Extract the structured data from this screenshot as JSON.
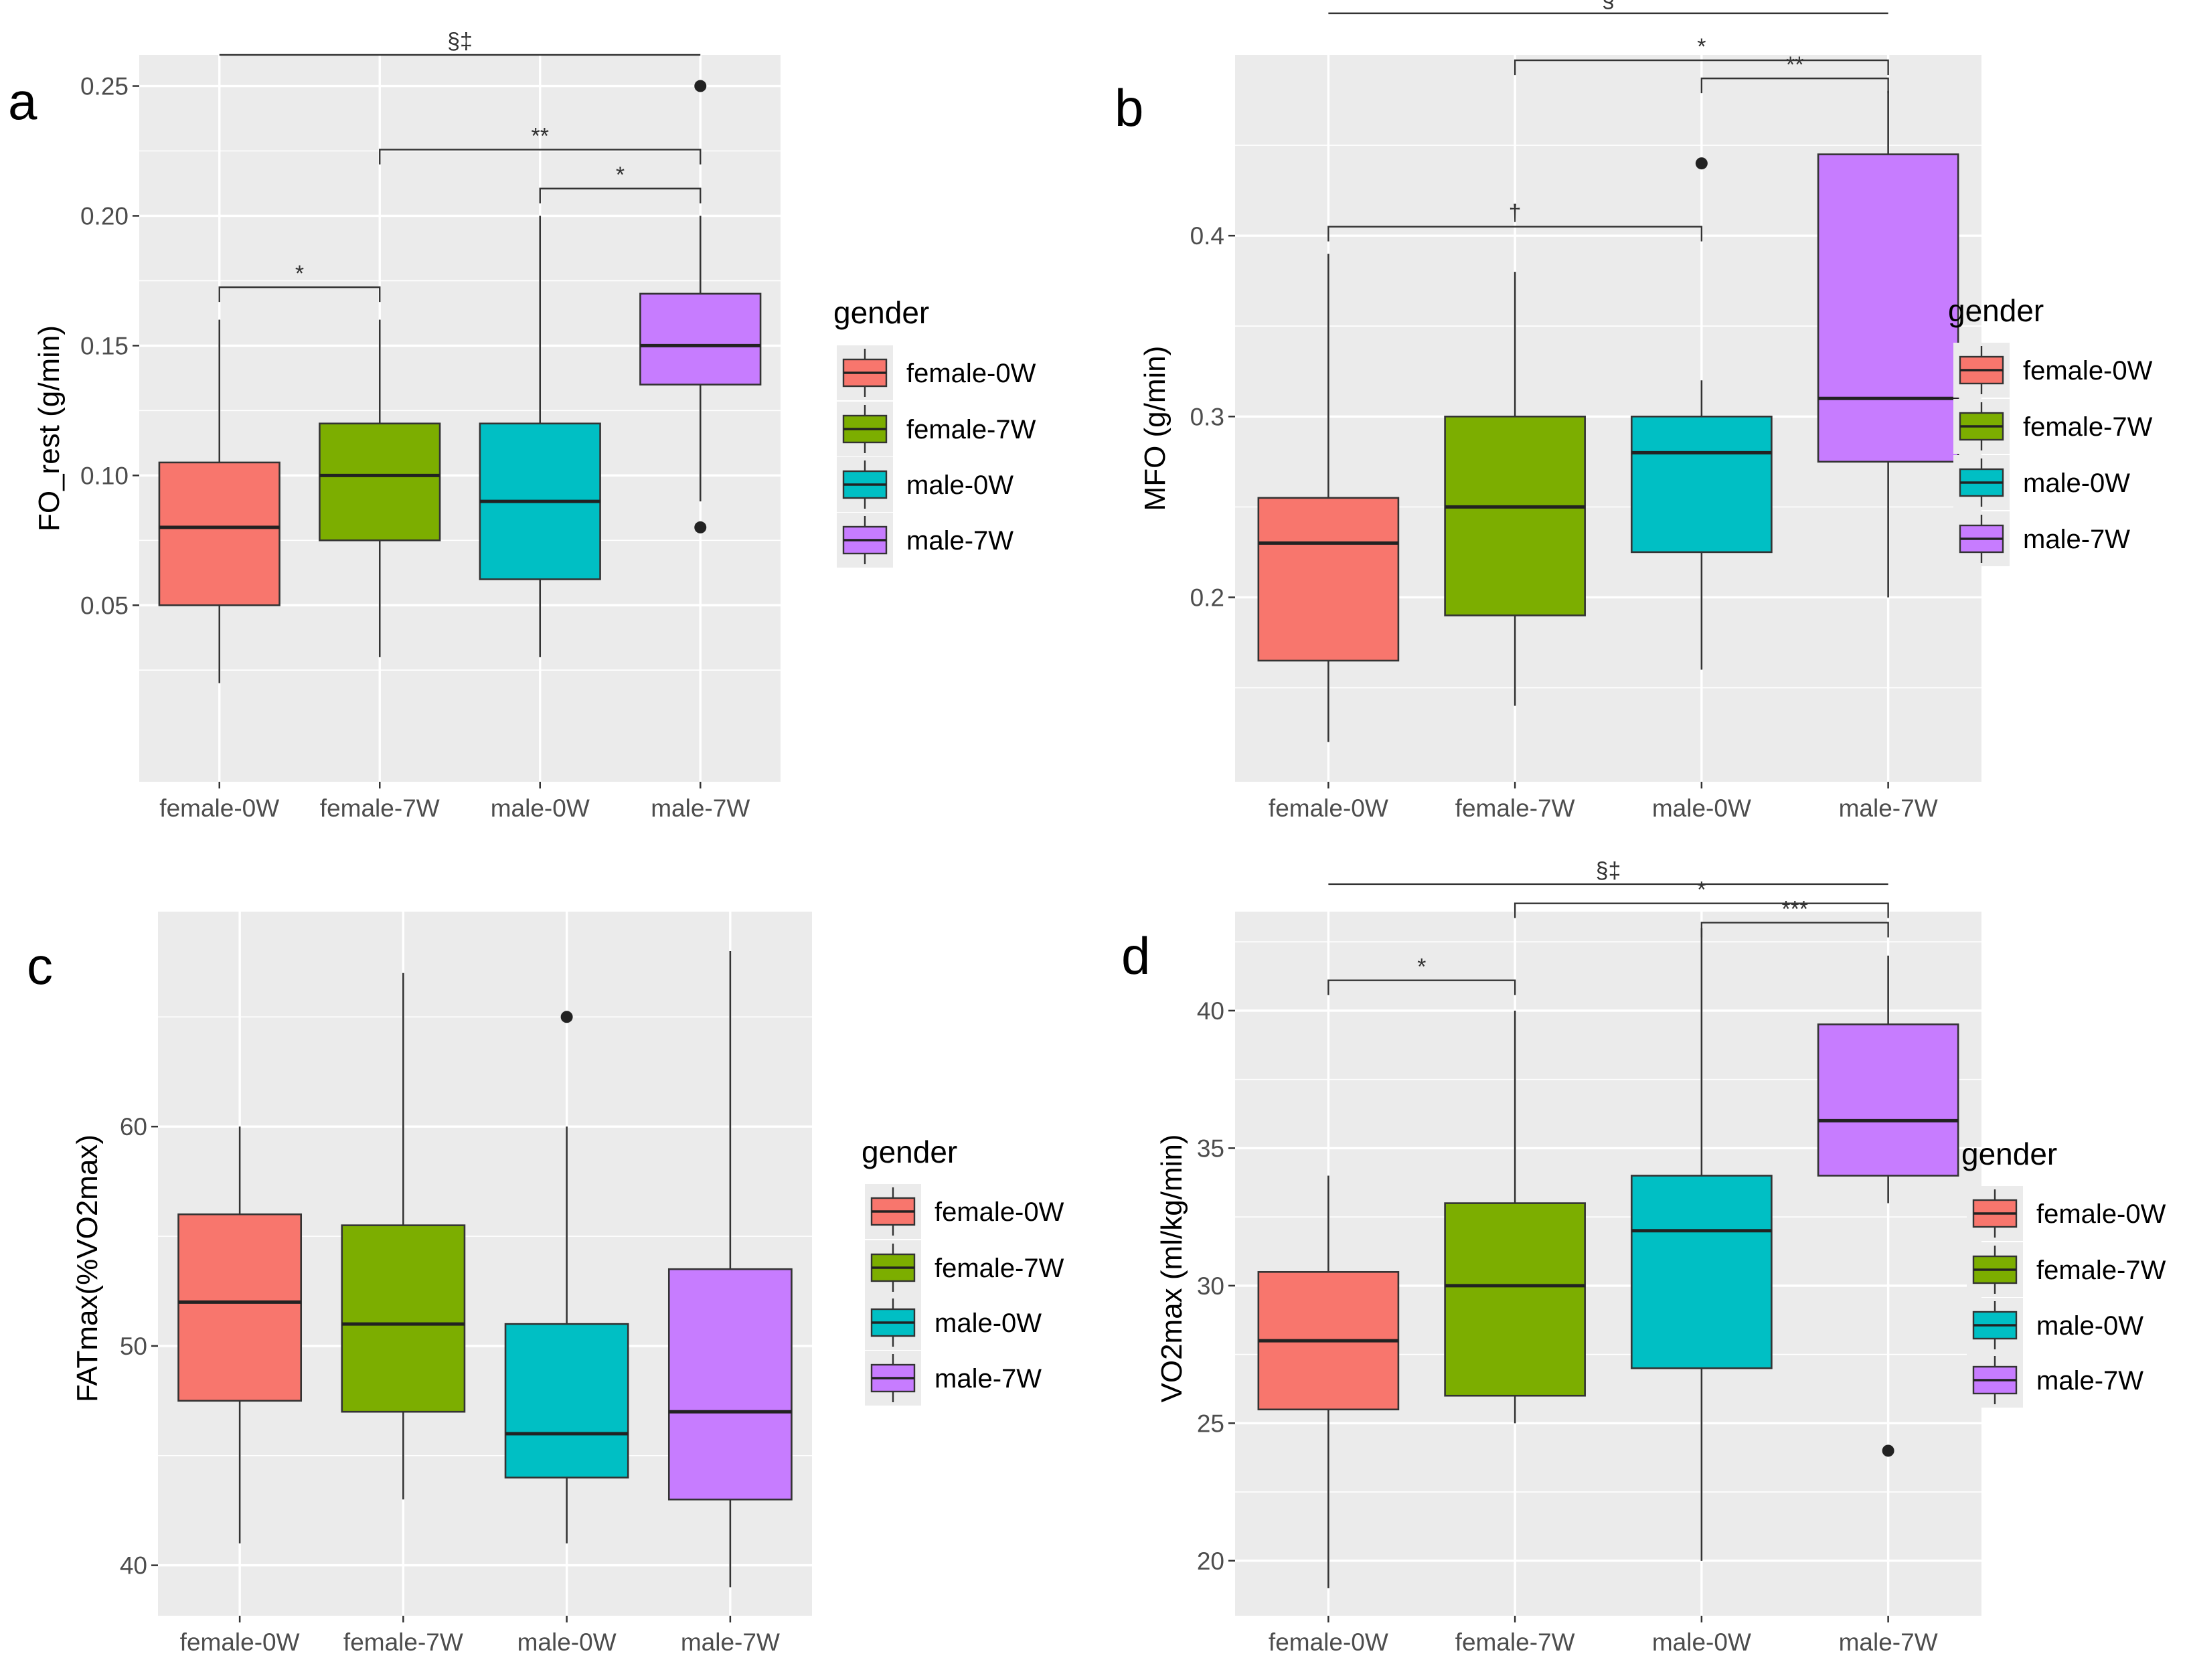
{
  "colors": {
    "female-0W": "#F8766D",
    "female-7W": "#7CAE00",
    "male-0W": "#00BFC4",
    "male-7W": "#C77CFF",
    "panel_bg": "#EBEBEB",
    "grid": "#FFFFFF"
  },
  "chart_data": [
    {
      "type": "box",
      "panel": "a",
      "xlabel": "",
      "ylabel": "FO_rest (g/min)",
      "ylim": [
        -0.018,
        0.262
      ],
      "yticks": [
        0.05,
        0.1,
        0.15,
        0.2,
        0.25
      ],
      "ytick_labels": [
        "0.05",
        "0.10",
        "0.15",
        "0.20",
        "0.25"
      ],
      "categories": [
        "female-0W",
        "female-7W",
        "male-0W",
        "male-7W"
      ],
      "boxes": [
        {
          "group": "female-0W",
          "whisker_low": 0.02,
          "q1": 0.05,
          "median": 0.08,
          "q3": 0.105,
          "whisker_high": 0.16,
          "outliers": []
        },
        {
          "group": "female-7W",
          "whisker_low": 0.03,
          "q1": 0.075,
          "median": 0.1,
          "q3": 0.12,
          "whisker_high": 0.16,
          "outliers": []
        },
        {
          "group": "male-0W",
          "whisker_low": 0.03,
          "q1": 0.06,
          "median": 0.09,
          "q3": 0.12,
          "whisker_high": 0.2,
          "outliers": []
        },
        {
          "group": "male-7W",
          "whisker_low": 0.09,
          "q1": 0.135,
          "median": 0.15,
          "q3": 0.17,
          "whisker_high": 0.2,
          "outliers": [
            0.08,
            0.25
          ]
        }
      ],
      "significance": [
        {
          "from": 0,
          "to": 1,
          "label": "*",
          "y": 0.1725,
          "bracket": true
        },
        {
          "from": 2,
          "to": 3,
          "label": "*",
          "y": 0.2105,
          "bracket": true
        },
        {
          "from": 1,
          "to": 3,
          "label": "**",
          "y": 0.2255,
          "bracket": true
        },
        {
          "from": 0,
          "to": 3,
          "label": "§‡",
          "y": 0.262,
          "bracket": false
        }
      ],
      "legend": {
        "title": "gender",
        "entries": [
          "female-0W",
          "female-7W",
          "male-0W",
          "male-7W"
        ],
        "position": "right"
      }
    },
    {
      "type": "box",
      "panel": "b",
      "xlabel": "",
      "ylabel": "MFO (g/min)",
      "ylim": [
        0.098,
        0.5
      ],
      "yticks": [
        0.2,
        0.3,
        0.4
      ],
      "ytick_labels": [
        "0.2",
        "0.3",
        "0.4"
      ],
      "categories": [
        "female-0W",
        "female-7W",
        "male-0W",
        "male-7W"
      ],
      "boxes": [
        {
          "group": "female-0W",
          "whisker_low": 0.12,
          "q1": 0.165,
          "median": 0.23,
          "q3": 0.255,
          "whisker_high": 0.39,
          "outliers": []
        },
        {
          "group": "female-7W",
          "whisker_low": 0.14,
          "q1": 0.19,
          "median": 0.25,
          "q3": 0.3,
          "whisker_high": 0.38,
          "outliers": []
        },
        {
          "group": "male-0W",
          "whisker_low": 0.16,
          "q1": 0.225,
          "median": 0.28,
          "q3": 0.3,
          "whisker_high": 0.32,
          "outliers": [
            0.44
          ]
        },
        {
          "group": "male-7W",
          "whisker_low": 0.2,
          "q1": 0.275,
          "median": 0.31,
          "q3": 0.445,
          "whisker_high": 0.48,
          "outliers": []
        }
      ],
      "significance": [
        {
          "from": 0,
          "to": 2,
          "label": "†",
          "y": 0.405,
          "bracket": true
        },
        {
          "from": 2,
          "to": 3,
          "label": "**",
          "y": 0.487,
          "bracket": true
        },
        {
          "from": 1,
          "to": 3,
          "label": "*",
          "y": 0.497,
          "bracket": true
        },
        {
          "from": 0,
          "to": 3,
          "label": "§",
          "y": 0.523,
          "bracket": false
        }
      ],
      "legend": {
        "title": "gender",
        "entries": [
          "female-0W",
          "female-7W",
          "male-0W",
          "male-7W"
        ],
        "position": "right"
      }
    },
    {
      "type": "box",
      "panel": "c",
      "xlabel": "",
      "ylabel": "FATmax(%VO2max)",
      "ylim": [
        37.7,
        69.8
      ],
      "yticks": [
        40,
        50,
        60
      ],
      "ytick_labels": [
        "40",
        "50",
        "60"
      ],
      "categories": [
        "female-0W",
        "female-7W",
        "male-0W",
        "male-7W"
      ],
      "boxes": [
        {
          "group": "female-0W",
          "whisker_low": 41,
          "q1": 47.5,
          "median": 52,
          "q3": 56,
          "whisker_high": 60,
          "outliers": []
        },
        {
          "group": "female-7W",
          "whisker_low": 43,
          "q1": 47,
          "median": 51,
          "q3": 55.5,
          "whisker_high": 67,
          "outliers": []
        },
        {
          "group": "male-0W",
          "whisker_low": 41,
          "q1": 44,
          "median": 46,
          "q3": 51,
          "whisker_high": 60,
          "outliers": [
            65
          ]
        },
        {
          "group": "male-7W",
          "whisker_low": 39,
          "q1": 43,
          "median": 47,
          "q3": 53.5,
          "whisker_high": 68,
          "outliers": []
        }
      ],
      "significance": [],
      "legend": {
        "title": "gender",
        "entries": [
          "female-0W",
          "female-7W",
          "male-0W",
          "male-7W"
        ],
        "position": "right"
      }
    },
    {
      "type": "box",
      "panel": "d",
      "xlabel": "",
      "ylabel": "VO2max (ml/kg/min)",
      "ylim": [
        18.0,
        43.6
      ],
      "yticks": [
        20,
        25,
        30,
        35,
        40
      ],
      "ytick_labels": [
        "20",
        "25",
        "30",
        "35",
        "40"
      ],
      "categories": [
        "female-0W",
        "female-7W",
        "male-0W",
        "male-7W"
      ],
      "boxes": [
        {
          "group": "female-0W",
          "whisker_low": 19,
          "q1": 25.5,
          "median": 28,
          "q3": 30.5,
          "whisker_high": 34,
          "outliers": []
        },
        {
          "group": "female-7W",
          "whisker_low": 25,
          "q1": 26,
          "median": 30,
          "q3": 33,
          "whisker_high": 40,
          "outliers": []
        },
        {
          "group": "male-0W",
          "whisker_low": 20,
          "q1": 27,
          "median": 32,
          "q3": 34,
          "whisker_high": 43,
          "outliers": []
        },
        {
          "group": "male-7W",
          "whisker_low": 33,
          "q1": 34,
          "median": 36,
          "q3": 39.5,
          "whisker_high": 42,
          "outliers": [
            24
          ]
        }
      ],
      "significance": [
        {
          "from": 0,
          "to": 1,
          "label": "*",
          "y": 41.1,
          "bracket": true
        },
        {
          "from": 2,
          "to": 3,
          "label": "***",
          "y": 43.2,
          "bracket": true
        },
        {
          "from": 1,
          "to": 3,
          "label": "*",
          "y": 43.9,
          "bracket": true
        },
        {
          "from": 0,
          "to": 3,
          "label": "§‡",
          "y": 44.6,
          "bracket": false
        }
      ],
      "legend": {
        "title": "gender",
        "entries": [
          "female-0W",
          "female-7W",
          "male-0W",
          "male-7W"
        ],
        "position": "right"
      }
    }
  ]
}
